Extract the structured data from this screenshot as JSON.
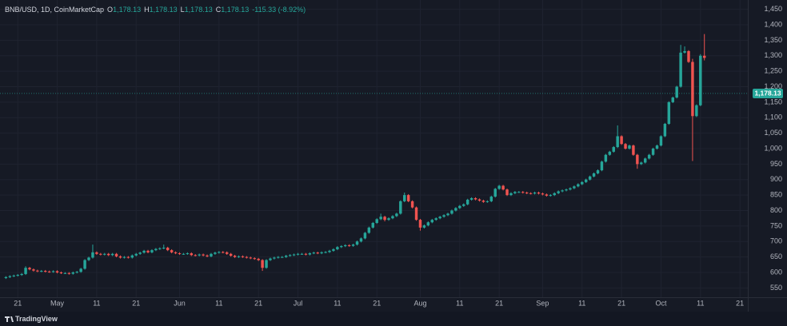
{
  "header": {
    "symbol": "BNB/USD, 1D, CoinMarketCap",
    "legend": [
      {
        "key": "O",
        "value": "1,178.13"
      },
      {
        "key": "H",
        "value": "1,178.13"
      },
      {
        "key": "L",
        "value": "1,178.13"
      },
      {
        "key": "C",
        "value": "1,178.13"
      }
    ],
    "change": "-115.33 (-8.92%)"
  },
  "footer": {
    "brand": "TradingView"
  },
  "chart_data": {
    "type": "candlestick",
    "up_color": "#26a69a",
    "down_color": "#ef5350",
    "grid": true,
    "last_price": 1178.13,
    "last_price_label": "1,178.13",
    "ylim": [
      520,
      1480
    ],
    "yticks": [
      550,
      600,
      650,
      700,
      750,
      800,
      850,
      900,
      950,
      {
        "value": 1000,
        "label": "1,000"
      },
      {
        "value": 1050,
        "label": "1,050"
      },
      {
        "value": 1100,
        "label": "1,100"
      },
      {
        "value": 1150,
        "label": "1,150"
      },
      {
        "value": 1200,
        "label": "1,200"
      },
      {
        "value": 1250,
        "label": "1,250"
      },
      {
        "value": 1300,
        "label": "1,300"
      },
      {
        "value": 1350,
        "label": "1,350"
      },
      {
        "value": 1400,
        "label": "1,400"
      },
      {
        "value": 1450,
        "label": "1,450"
      }
    ],
    "xlim": [
      -1.5,
      188
    ],
    "xticks": [
      {
        "value": 3,
        "label": "21"
      },
      {
        "value": 13,
        "label": "May"
      },
      {
        "value": 23,
        "label": "11"
      },
      {
        "value": 33,
        "label": "21"
      },
      {
        "value": 44,
        "label": "Jun"
      },
      {
        "value": 54,
        "label": "11"
      },
      {
        "value": 64,
        "label": "21"
      },
      {
        "value": 74,
        "label": "Jul"
      },
      {
        "value": 84,
        "label": "11"
      },
      {
        "value": 94,
        "label": "21"
      },
      {
        "value": 105,
        "label": "Aug"
      },
      {
        "value": 115,
        "label": "11"
      },
      {
        "value": 125,
        "label": "21"
      },
      {
        "value": 136,
        "label": "Sep"
      },
      {
        "value": 146,
        "label": "11"
      },
      {
        "value": 156,
        "label": "21"
      },
      {
        "value": 166,
        "label": "Oct"
      },
      {
        "value": 176,
        "label": "11"
      },
      {
        "value": 186,
        "label": "21"
      }
    ],
    "ohlc": [
      [
        582,
        588,
        579,
        585
      ],
      [
        585,
        591,
        582,
        588
      ],
      [
        588,
        593,
        585,
        590
      ],
      [
        590,
        595,
        587,
        592
      ],
      [
        592,
        598,
        589,
        595
      ],
      [
        595,
        620,
        592,
        615
      ],
      [
        615,
        618,
        607,
        610
      ],
      [
        610,
        613,
        603,
        606
      ],
      [
        606,
        609,
        601,
        604
      ],
      [
        604,
        608,
        601,
        605
      ],
      [
        605,
        608,
        600,
        603
      ],
      [
        603,
        606,
        599,
        602
      ],
      [
        602,
        607,
        599,
        604
      ],
      [
        604,
        607,
        597,
        600
      ],
      [
        600,
        603,
        595,
        598
      ],
      [
        598,
        601,
        595,
        598
      ],
      [
        598,
        601,
        593,
        596
      ],
      [
        596,
        603,
        593,
        600
      ],
      [
        600,
        605,
        597,
        602
      ],
      [
        602,
        615,
        599,
        612
      ],
      [
        612,
        643,
        609,
        640
      ],
      [
        640,
        651,
        637,
        648
      ],
      [
        648,
        690,
        645,
        665
      ],
      [
        665,
        668,
        657,
        660
      ],
      [
        660,
        663,
        655,
        658
      ],
      [
        658,
        663,
        655,
        660
      ],
      [
        660,
        663,
        653,
        656
      ],
      [
        656,
        663,
        653,
        660
      ],
      [
        660,
        663,
        649,
        652
      ],
      [
        652,
        655,
        645,
        648
      ],
      [
        648,
        653,
        645,
        650
      ],
      [
        650,
        653,
        645,
        648
      ],
      [
        648,
        658,
        645,
        655
      ],
      [
        655,
        663,
        652,
        660
      ],
      [
        660,
        667,
        657,
        664
      ],
      [
        664,
        673,
        661,
        670
      ],
      [
        670,
        673,
        662,
        665
      ],
      [
        665,
        675,
        662,
        672
      ],
      [
        672,
        679,
        669,
        676
      ],
      [
        676,
        681,
        673,
        678
      ],
      [
        678,
        690,
        675,
        680
      ],
      [
        680,
        683,
        669,
        672
      ],
      [
        672,
        675,
        662,
        665
      ],
      [
        665,
        668,
        659,
        662
      ],
      [
        662,
        665,
        657,
        660
      ],
      [
        660,
        663,
        657,
        660
      ],
      [
        660,
        665,
        657,
        662
      ],
      [
        662,
        665,
        653,
        656
      ],
      [
        656,
        659,
        652,
        655
      ],
      [
        655,
        661,
        652,
        658
      ],
      [
        658,
        661,
        652,
        655
      ],
      [
        655,
        658,
        649,
        652
      ],
      [
        652,
        663,
        649,
        660
      ],
      [
        660,
        667,
        657,
        664
      ],
      [
        664,
        669,
        661,
        666
      ],
      [
        666,
        669,
        662,
        665
      ],
      [
        665,
        668,
        657,
        660
      ],
      [
        660,
        663,
        651,
        654
      ],
      [
        654,
        657,
        647,
        650
      ],
      [
        650,
        655,
        647,
        652
      ],
      [
        652,
        655,
        647,
        650
      ],
      [
        650,
        653,
        645,
        648
      ],
      [
        648,
        651,
        643,
        646
      ],
      [
        646,
        649,
        641,
        644
      ],
      [
        644,
        647,
        637,
        640
      ],
      [
        640,
        643,
        605,
        615
      ],
      [
        615,
        643,
        612,
        640
      ],
      [
        640,
        648,
        637,
        645
      ],
      [
        645,
        651,
        642,
        648
      ],
      [
        648,
        653,
        645,
        650
      ],
      [
        650,
        653,
        647,
        650
      ],
      [
        650,
        657,
        647,
        654
      ],
      [
        654,
        659,
        651,
        656
      ],
      [
        656,
        661,
        653,
        658
      ],
      [
        658,
        663,
        655,
        660
      ],
      [
        660,
        663,
        657,
        660
      ],
      [
        660,
        663,
        655,
        658
      ],
      [
        658,
        665,
        655,
        662
      ],
      [
        662,
        667,
        659,
        664
      ],
      [
        664,
        667,
        659,
        662
      ],
      [
        662,
        668,
        659,
        665
      ],
      [
        665,
        669,
        662,
        666
      ],
      [
        666,
        673,
        663,
        670
      ],
      [
        670,
        678,
        667,
        675
      ],
      [
        675,
        685,
        672,
        682
      ],
      [
        682,
        688,
        679,
        685
      ],
      [
        685,
        691,
        682,
        688
      ],
      [
        688,
        691,
        683,
        686
      ],
      [
        686,
        693,
        683,
        690
      ],
      [
        690,
        703,
        687,
        700
      ],
      [
        700,
        713,
        697,
        710
      ],
      [
        710,
        731,
        707,
        728
      ],
      [
        728,
        748,
        725,
        745
      ],
      [
        745,
        763,
        742,
        760
      ],
      [
        760,
        775,
        757,
        772
      ],
      [
        772,
        790,
        769,
        780
      ],
      [
        780,
        783,
        765,
        770
      ],
      [
        770,
        778,
        767,
        775
      ],
      [
        775,
        785,
        772,
        782
      ],
      [
        782,
        793,
        779,
        790
      ],
      [
        790,
        833,
        787,
        830
      ],
      [
        830,
        858,
        827,
        850
      ],
      [
        850,
        853,
        827,
        830
      ],
      [
        830,
        833,
        807,
        810
      ],
      [
        810,
        813,
        767,
        770
      ],
      [
        770,
        773,
        735,
        745
      ],
      [
        745,
        755,
        742,
        752
      ],
      [
        752,
        765,
        749,
        762
      ],
      [
        762,
        773,
        759,
        770
      ],
      [
        770,
        778,
        767,
        775
      ],
      [
        775,
        783,
        772,
        780
      ],
      [
        780,
        788,
        777,
        785
      ],
      [
        785,
        793,
        782,
        790
      ],
      [
        790,
        803,
        787,
        800
      ],
      [
        800,
        811,
        797,
        808
      ],
      [
        808,
        818,
        805,
        815
      ],
      [
        815,
        823,
        812,
        820
      ],
      [
        820,
        838,
        817,
        835
      ],
      [
        835,
        843,
        832,
        840
      ],
      [
        840,
        843,
        833,
        836
      ],
      [
        836,
        839,
        829,
        832
      ],
      [
        832,
        835,
        825,
        828
      ],
      [
        828,
        833,
        825,
        830
      ],
      [
        830,
        848,
        827,
        845
      ],
      [
        845,
        873,
        842,
        870
      ],
      [
        870,
        883,
        867,
        880
      ],
      [
        880,
        883,
        865,
        868
      ],
      [
        868,
        871,
        847,
        850
      ],
      [
        850,
        859,
        847,
        856
      ],
      [
        856,
        863,
        853,
        860
      ],
      [
        860,
        863,
        857,
        860
      ],
      [
        860,
        863,
        855,
        858
      ],
      [
        858,
        861,
        853,
        856
      ],
      [
        856,
        859,
        852,
        855
      ],
      [
        855,
        861,
        852,
        858
      ],
      [
        858,
        861,
        852,
        855
      ],
      [
        855,
        858,
        849,
        852
      ],
      [
        852,
        855,
        845,
        848
      ],
      [
        848,
        853,
        845,
        850
      ],
      [
        850,
        859,
        847,
        856
      ],
      [
        856,
        865,
        853,
        862
      ],
      [
        862,
        868,
        859,
        865
      ],
      [
        865,
        871,
        862,
        868
      ],
      [
        868,
        875,
        865,
        872
      ],
      [
        872,
        881,
        869,
        878
      ],
      [
        878,
        888,
        875,
        885
      ],
      [
        885,
        895,
        882,
        892
      ],
      [
        892,
        903,
        889,
        900
      ],
      [
        900,
        913,
        897,
        910
      ],
      [
        910,
        923,
        907,
        920
      ],
      [
        920,
        933,
        917,
        930
      ],
      [
        930,
        961,
        927,
        958
      ],
      [
        958,
        983,
        955,
        980
      ],
      [
        980,
        993,
        977,
        990
      ],
      [
        990,
        1008,
        987,
        1005
      ],
      [
        1005,
        1075,
        1002,
        1040
      ],
      [
        1040,
        1043,
        1012,
        1015
      ],
      [
        1015,
        1018,
        997,
        1000
      ],
      [
        1000,
        1013,
        997,
        1010
      ],
      [
        1010,
        1013,
        977,
        980
      ],
      [
        980,
        983,
        935,
        950
      ],
      [
        950,
        958,
        947,
        955
      ],
      [
        955,
        971,
        952,
        968
      ],
      [
        968,
        983,
        965,
        980
      ],
      [
        980,
        1003,
        977,
        1000
      ],
      [
        1000,
        1013,
        997,
        1010
      ],
      [
        1010,
        1043,
        1007,
        1040
      ],
      [
        1040,
        1083,
        1037,
        1080
      ],
      [
        1080,
        1153,
        1077,
        1150
      ],
      [
        1150,
        1168,
        1147,
        1165
      ],
      [
        1165,
        1203,
        1162,
        1200
      ],
      [
        1200,
        1335,
        1197,
        1310
      ],
      [
        1310,
        1330,
        1307,
        1315
      ],
      [
        1315,
        1318,
        1277,
        1280
      ],
      [
        1280,
        1290,
        960,
        1105
      ],
      [
        1105,
        1143,
        1102,
        1140
      ],
      [
        1140,
        1305,
        1137,
        1300
      ],
      [
        1300,
        1370,
        1285,
        1293
      ]
    ]
  }
}
